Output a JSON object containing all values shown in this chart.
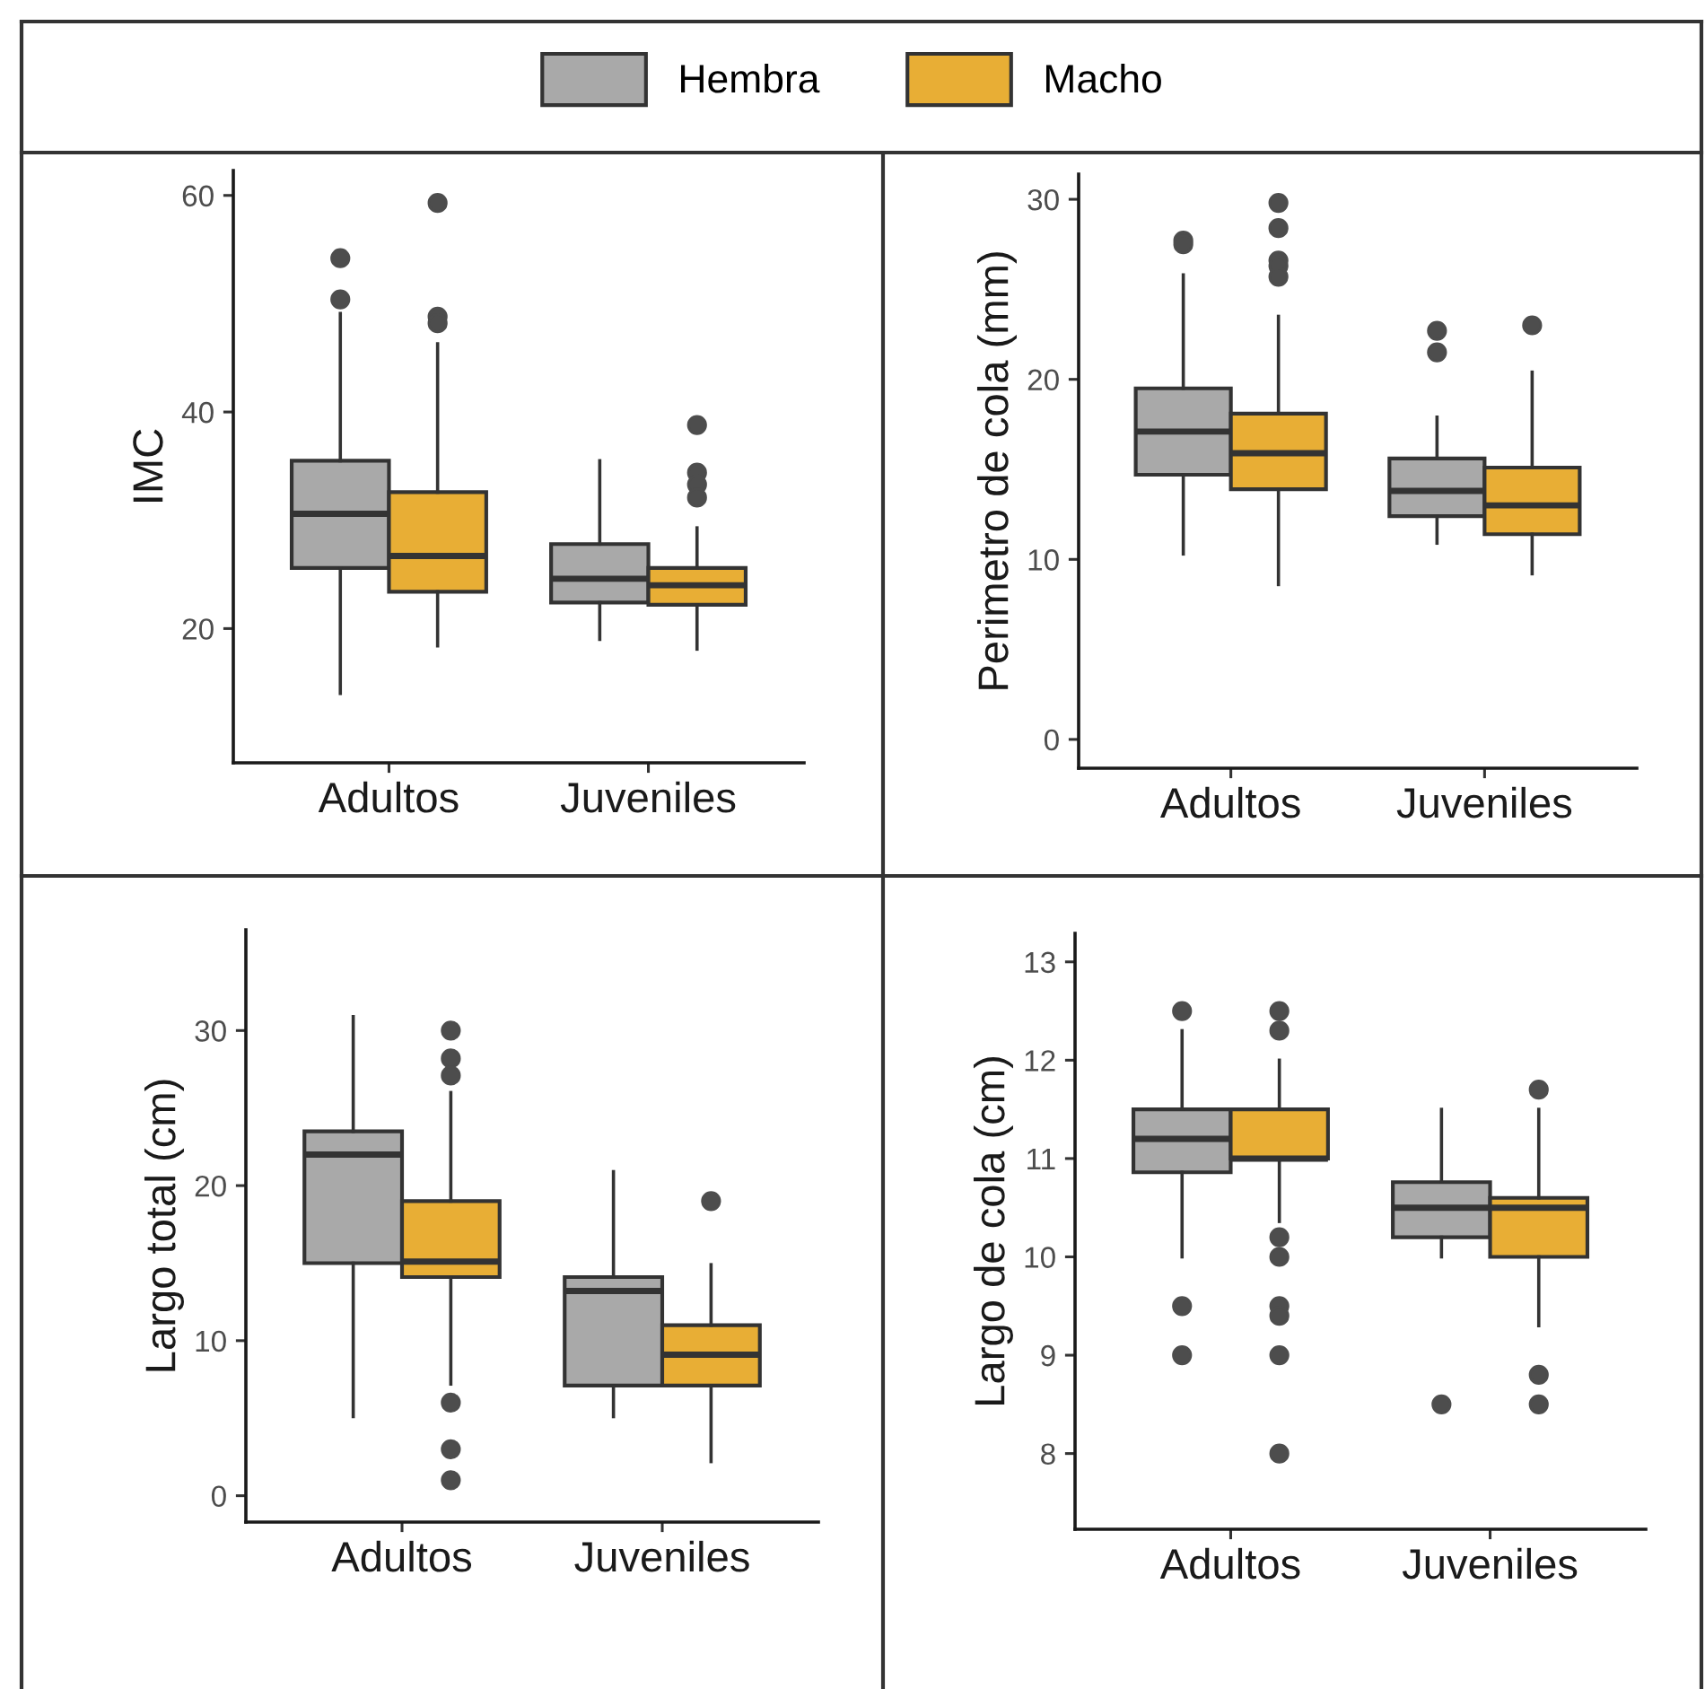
{
  "chart_data": [
    {
      "type": "box",
      "ylabel": "IMC",
      "categories": [
        "Adultos",
        "Juveniles"
      ],
      "ylim": [
        7.6,
        62.3
      ],
      "yticks": [
        20,
        40,
        60
      ],
      "grid": false,
      "legend": "top",
      "series": [
        {
          "name": "Hembra",
          "color": "#a9a9a9",
          "boxes": [
            {
              "low": 14.0,
              "q1": 25.6,
              "median": 30.6,
              "q3": 35.5,
              "high": 49.1,
              "outliers": [
                50.4,
                54.2
              ]
            },
            {
              "low": 19.0,
              "q1": 22.4,
              "median": 24.6,
              "q3": 27.8,
              "high": 35.5
            }
          ]
        },
        {
          "name": "Macho",
          "color": "#e8ae35",
          "boxes": [
            {
              "low": 18.4,
              "q1": 23.4,
              "median": 26.7,
              "q3": 32.6,
              "high": 46.3,
              "outliers": [
                59.3,
                48.8,
                48.2
              ]
            },
            {
              "low": 18.1,
              "q1": 22.2,
              "median": 24.0,
              "q3": 25.6,
              "high": 29.3,
              "outliers": [
                38.8,
                34.4,
                33.3,
                32.1
              ]
            }
          ]
        }
      ]
    },
    {
      "type": "box",
      "ylabel": "Perimetro de cola (mm)",
      "categories": [
        "Adultos",
        "Juveniles"
      ],
      "ylim": [
        -1.6,
        31.4
      ],
      "yticks": [
        0,
        10,
        20,
        30
      ],
      "grid": false,
      "series": [
        {
          "color": "#a9a9a9",
          "boxes": [
            {
              "low": 10.3,
              "q1": 14.7,
              "median": 17.1,
              "q3": 19.5,
              "high": 25.8,
              "outliers": [
                27.7,
                27.5
              ]
            },
            {
              "low": 10.9,
              "q1": 12.4,
              "median": 13.8,
              "q3": 15.6,
              "high": 17.9,
              "outliers": [
                22.7,
                21.5
              ]
            }
          ]
        },
        {
          "color": "#e8ae35",
          "boxes": [
            {
              "low": 8.6,
              "q1": 13.9,
              "median": 15.9,
              "q3": 18.1,
              "high": 23.5,
              "outliers": [
                29.8,
                28.4,
                26.6,
                26.3,
                25.7
              ]
            },
            {
              "low": 9.2,
              "q1": 11.4,
              "median": 13.0,
              "q3": 15.1,
              "high": 20.4,
              "outliers": [
                23.0
              ]
            }
          ]
        }
      ]
    },
    {
      "type": "box",
      "ylabel": "Largo total (cm)",
      "categories": [
        "Adultos",
        "Juveniles"
      ],
      "ylim": [
        -1.7,
        36.5
      ],
      "yticks": [
        0,
        10,
        20,
        30
      ],
      "grid": false,
      "series": [
        {
          "color": "#a9a9a9",
          "boxes": [
            {
              "low": 5.1,
              "q1": 15.0,
              "median": 22.0,
              "q3": 23.5,
              "high": 30.9
            },
            {
              "low": 5.1,
              "q1": 7.1,
              "median": 13.2,
              "q3": 14.1,
              "high": 20.9
            }
          ]
        },
        {
          "color": "#e8ae35",
          "boxes": [
            {
              "low": 7.2,
              "q1": 14.1,
              "median": 15.1,
              "q3": 19.0,
              "high": 26.0,
              "outliers": [
                30.0,
                28.2,
                27.1,
                6.0,
                3.0,
                1.0
              ]
            },
            {
              "low": 2.2,
              "q1": 7.1,
              "median": 9.1,
              "q3": 11.0,
              "high": 14.9,
              "outliers": [
                19.0
              ]
            }
          ]
        }
      ]
    },
    {
      "type": "box",
      "ylabel": "Largo de cola (cm)",
      "categories": [
        "Adultos",
        "Juveniles"
      ],
      "ylim": [
        7.23,
        13.29
      ],
      "yticks": [
        8,
        9,
        10,
        11,
        12,
        13
      ],
      "grid": false,
      "series": [
        {
          "color": "#a9a9a9",
          "boxes": [
            {
              "low": 10.0,
              "q1": 10.86,
              "median": 11.2,
              "q3": 11.5,
              "high": 12.3,
              "outliers": [
                12.5,
                9.5,
                9.0
              ]
            },
            {
              "low": 10.0,
              "q1": 10.2,
              "median": 10.5,
              "q3": 10.76,
              "high": 11.5,
              "outliers": [
                8.5
              ]
            }
          ]
        },
        {
          "color": "#e8ae35",
          "boxes": [
            {
              "low": 10.36,
              "q1": 11.0,
              "median": 11.0,
              "q3": 11.5,
              "high": 12.0,
              "outliers": [
                12.5,
                12.3,
                10.2,
                10.0,
                9.5,
                9.4,
                9.0,
                8.0
              ]
            },
            {
              "low": 9.3,
              "q1": 10.0,
              "median": 10.5,
              "q3": 10.6,
              "high": 11.5,
              "outliers": [
                11.7,
                8.8,
                8.5
              ]
            }
          ]
        }
      ]
    }
  ]
}
